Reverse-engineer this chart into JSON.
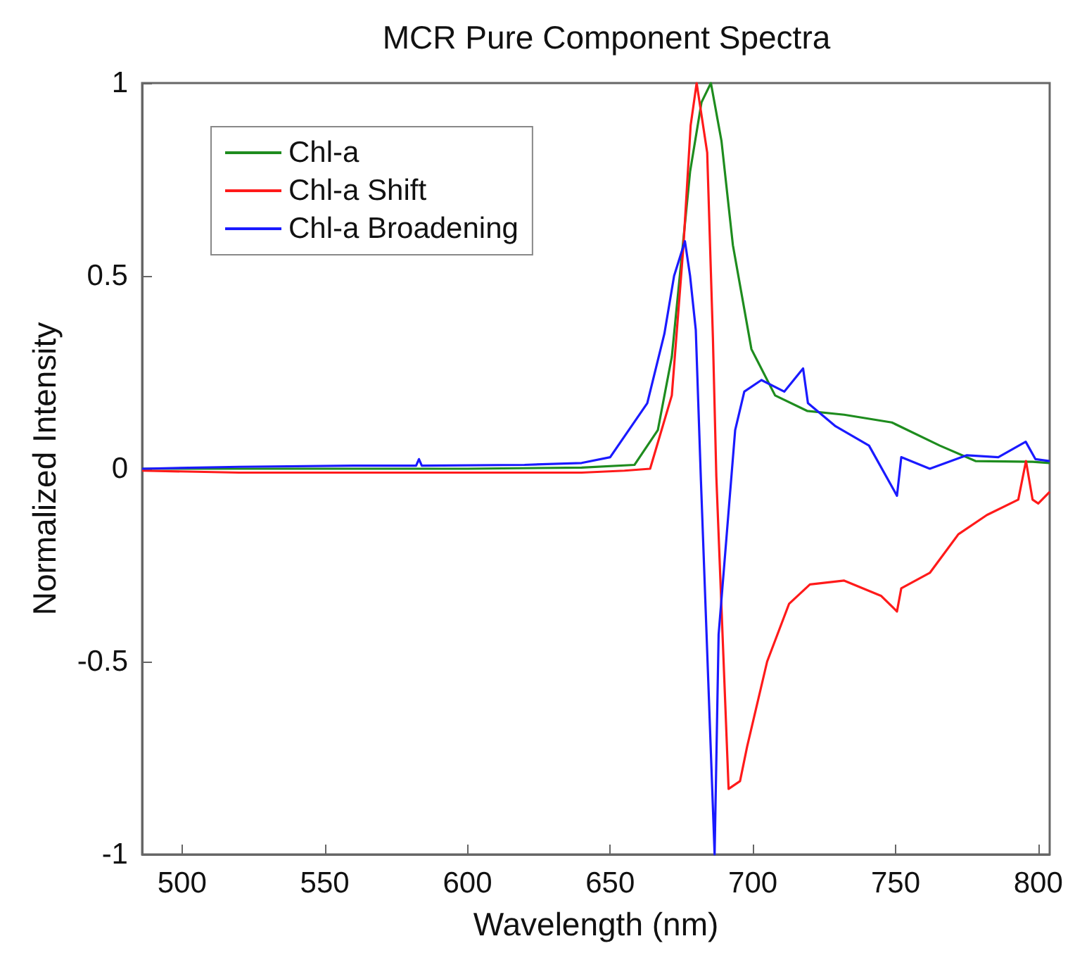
{
  "chart_data": {
    "type": "line",
    "title": "MCR Pure Component Spectra",
    "xlabel": "Wavelength (nm)",
    "ylabel": "Normalized Intensity",
    "xlim": [
      486,
      804
    ],
    "ylim": [
      -1,
      1
    ],
    "xticks": [
      500,
      550,
      600,
      650,
      700,
      750,
      800
    ],
    "yticks": [
      -1,
      -0.5,
      0,
      0.5,
      1
    ],
    "grid": false,
    "legend": "top left",
    "marker": "none",
    "line_style": "solid",
    "series": [
      {
        "name": "Chl-a",
        "color": "#1e8c1e",
        "x": [
          486,
          520,
          560,
          600,
          640,
          658.5,
          666.7,
          671.6,
          678,
          682,
          685.3,
          689,
          693,
          699.5,
          707.8,
          719,
          732,
          748.7,
          765.5,
          778,
          798,
          804
        ],
        "values": [
          0,
          0,
          0,
          0,
          0.003,
          0.01,
          0.1,
          0.29,
          0.77,
          0.95,
          1,
          0.85,
          0.58,
          0.31,
          0.19,
          0.15,
          0.14,
          0.12,
          0.06,
          0.02,
          0.018,
          0.015
        ]
      },
      {
        "name": "Chl-a Shift",
        "color": "#ff1a1a",
        "x": [
          486,
          520,
          560,
          600,
          640,
          655,
          664,
          671.6,
          675.7,
          678.2,
          680.3,
          684,
          686,
          687.2,
          691.5,
          695.5,
          698,
          705,
          712.7,
          720,
          732,
          745,
          750.5,
          752,
          762,
          772,
          782,
          793,
          795.7,
          798,
          800,
          804
        ],
        "values": [
          -0.005,
          -0.01,
          -0.01,
          -0.01,
          -0.01,
          -0.005,
          0,
          0.19,
          0.58,
          0.89,
          1,
          0.82,
          0.34,
          -0.02,
          -0.83,
          -0.81,
          -0.72,
          -0.5,
          -0.35,
          -0.3,
          -0.29,
          -0.33,
          -0.37,
          -0.31,
          -0.27,
          -0.17,
          -0.12,
          -0.08,
          0.02,
          -0.08,
          -0.09,
          -0.06
        ]
      },
      {
        "name": "Chl-a Broadening",
        "color": "#1a1aff",
        "x": [
          486,
          520,
          560,
          582,
          583,
          584,
          620,
          640,
          650,
          663,
          669,
          672.4,
          676.2,
          678,
          680,
          681.8,
          686.6,
          688,
          693.8,
          697,
          703,
          711,
          717.6,
          719.3,
          729,
          740.7,
          750.5,
          752,
          762,
          775,
          786,
          795.6,
          799,
          804
        ],
        "values": [
          0,
          0.005,
          0.008,
          0.008,
          0.025,
          0.008,
          0.01,
          0.015,
          0.03,
          0.17,
          0.35,
          0.5,
          0.59,
          0.5,
          0.36,
          -0.03,
          -1,
          -0.43,
          0.1,
          0.2,
          0.23,
          0.2,
          0.26,
          0.17,
          0.11,
          0.06,
          -0.07,
          0.03,
          0,
          0.035,
          0.03,
          0.07,
          0.025,
          0.02
        ]
      }
    ]
  }
}
